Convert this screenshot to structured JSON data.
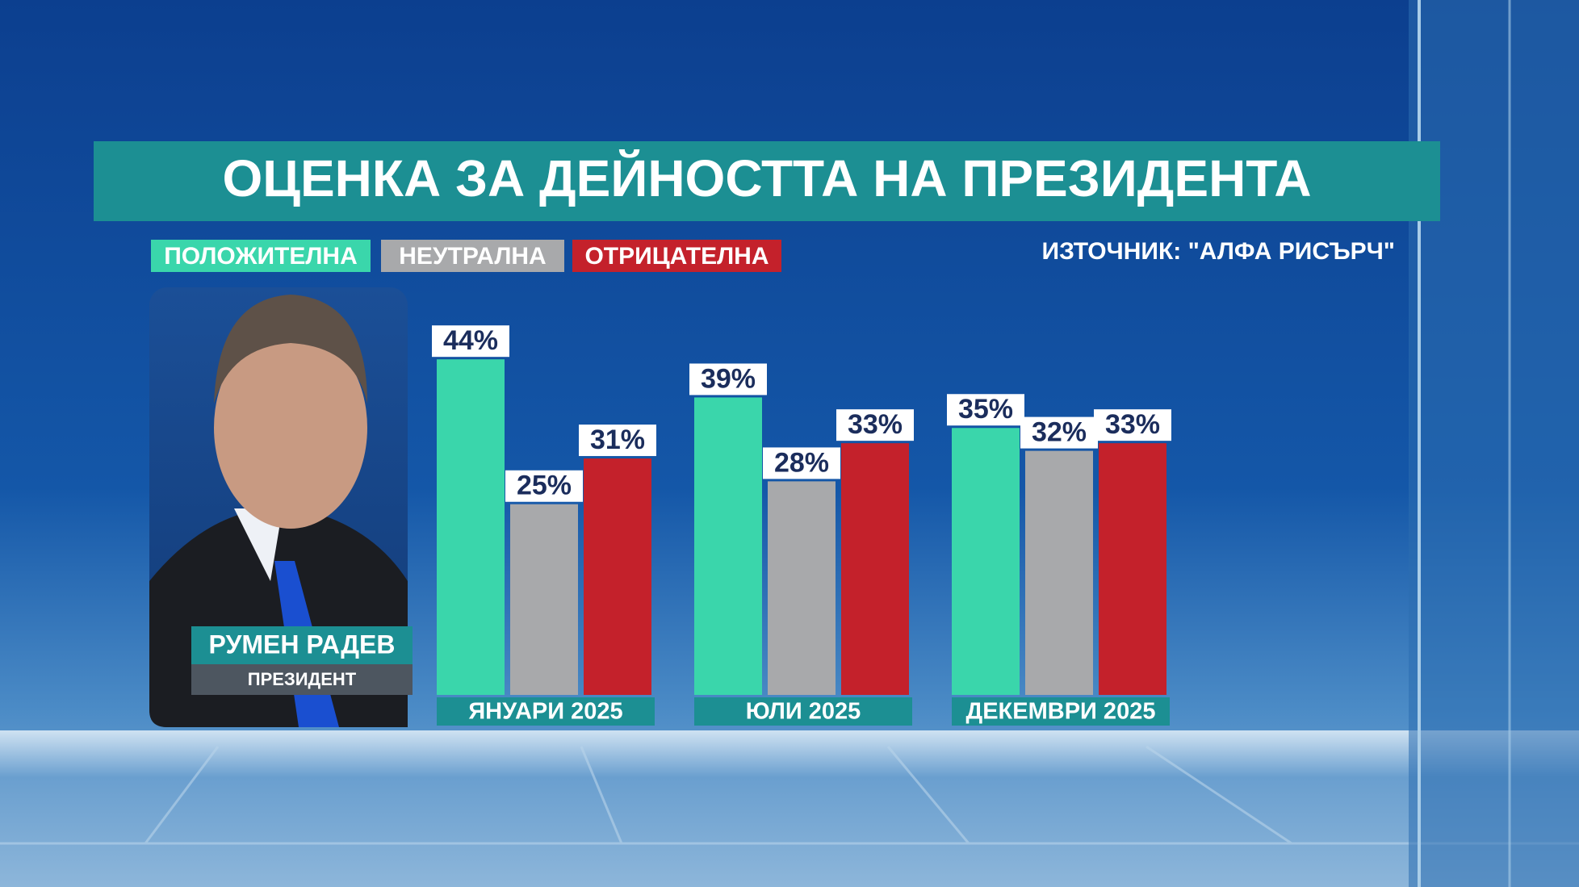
{
  "chart_data": {
    "type": "bar",
    "title": "ОЦЕНКА ЗА ДЕЙНОСТТА НА ПРЕЗИДЕНТА",
    "source": "ИЗТОЧНИК: \"АЛФА РИСЪРЧ\"",
    "person": {
      "name": "РУМЕН РАДЕВ",
      "role": "ПРЕЗИДЕНТ"
    },
    "categories": [
      "ЯНУАРИ 2025",
      "ЮЛИ 2025",
      "ДЕКЕМВРИ 2025"
    ],
    "series": [
      {
        "name": "ПОЛОЖИТЕЛНА",
        "color": "#3ad6ab",
        "values": [
          44,
          39,
          35
        ],
        "value_labels": [
          "44%",
          "39%",
          "35%"
        ]
      },
      {
        "name": "НЕУТРАЛНА",
        "color": "#a8a9ab",
        "values": [
          25,
          28,
          32
        ],
        "value_labels": [
          "25%",
          "28%",
          "32%"
        ]
      },
      {
        "name": "ОТРИЦАТЕЛНА",
        "color": "#c4212b",
        "values": [
          31,
          33,
          33
        ],
        "value_labels": [
          "31%",
          "33%",
          "33%"
        ]
      }
    ]
  }
}
